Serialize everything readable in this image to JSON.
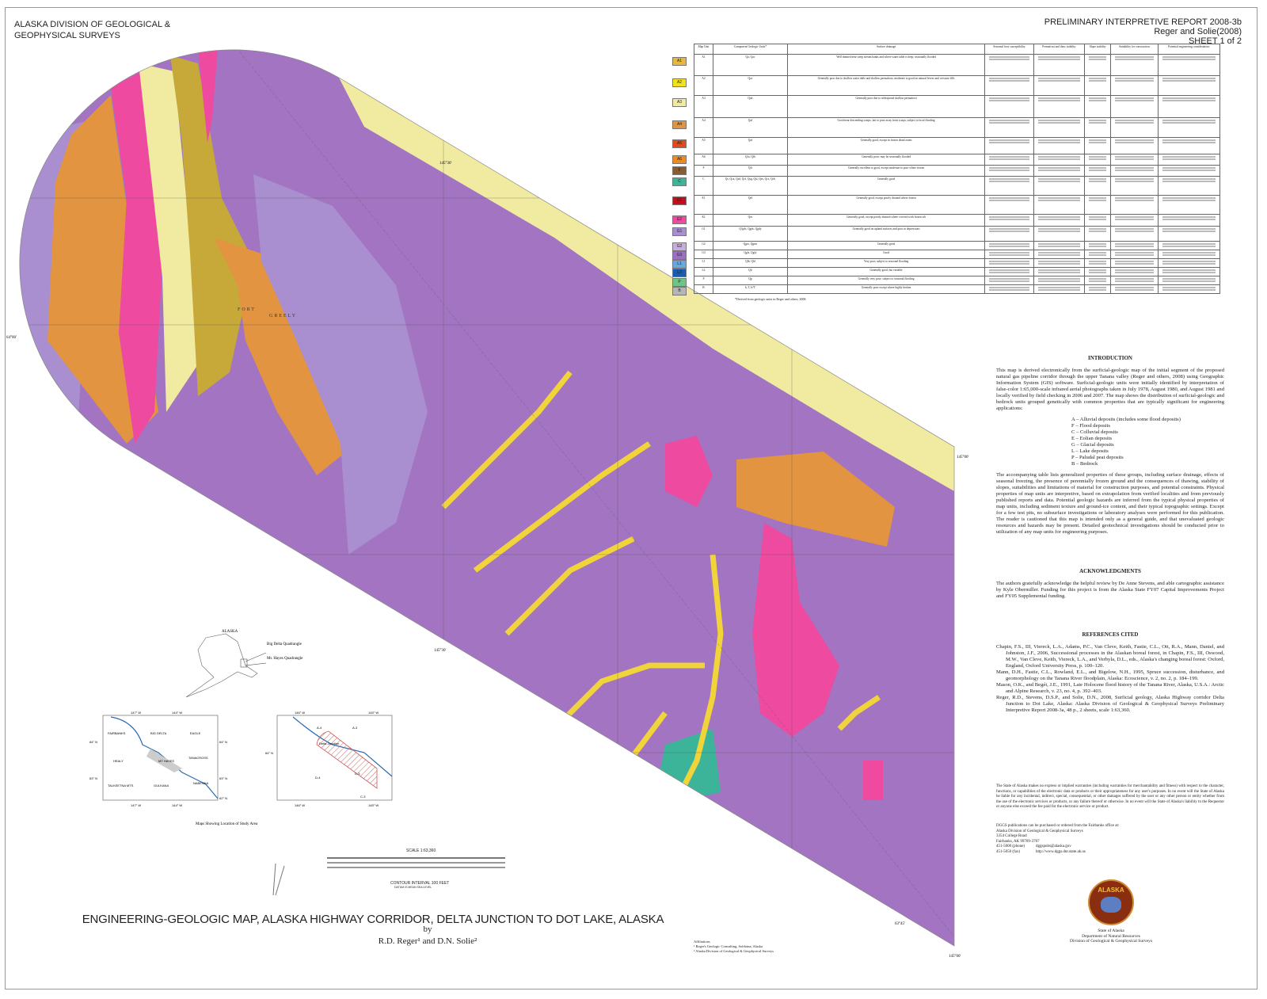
{
  "header": {
    "agency": "ALASKA DIVISION OF GEOLOGICAL & GEOPHYSICAL SURVEYS",
    "report": "PRELIMINARY INTERPRETIVE REPORT 2008-3b",
    "authors_short": "Reger and Solie(2008)",
    "sheet": "SHEET 1 of 2"
  },
  "table": {
    "headers": [
      "Map Unit",
      "Component Geologic Units*",
      "Surface drainage",
      "Seasonal frost susceptibility",
      "Permafrost and thaw stability",
      "Slope stability",
      "Suitability for construction",
      "Potential engineering considerations"
    ],
    "rows": [
      {
        "unit": "A1",
        "color": "#e6b840",
        "components": "Qa, Qac",
        "drainage": "Well drained near steep stream banks and where water table is deep; seasonally flooded"
      },
      {
        "unit": "A2",
        "color": "#f2e21c",
        "components": "Qac",
        "drainage": "Generally poor due to shallow water table and shallow permafrost; moderate to good on natural levees and crevasse fills"
      },
      {
        "unit": "A3",
        "color": "#f0eba0",
        "components": "Qab",
        "drainage": "Generally poor due to widespread shallow permafrost"
      },
      {
        "unit": "A4",
        "color": "#e39440",
        "components": "Qaf",
        "drainage": "Good near descending scarps; fair to poor away from scarps; subject to local flooding"
      },
      {
        "unit": "A5",
        "color": "#e04a1c",
        "components": "Qaf",
        "drainage": "Generally good, except in frozen distal zones"
      },
      {
        "unit": "A6",
        "color": "#ef8a1e",
        "components": "Qfo, Qfh",
        "drainage": "Generally poor; may be seasonally flooded"
      },
      {
        "unit": "F",
        "color": "#8a5a30",
        "components": "Qfr",
        "drainage": "Generally excellent to good, except moderate to poor where frozen"
      },
      {
        "unit": "C",
        "color": "#3bb49a",
        "components": "Qs, Qca, Qsd, Qcf, Qsg, Qsl, Qes, Qcs, Qcb",
        "drainage": "Generally good"
      },
      {
        "unit": "E1",
        "color": "#c0101a",
        "components": "Qel",
        "drainage": "Generally good, except poorly drained where frozen"
      },
      {
        "unit": "E2",
        "color": "#ee4aa0",
        "components": "Qes",
        "drainage": "Generally good, except poorly drained where covered with frozen silt"
      },
      {
        "unit": "G1",
        "color": "#a98fcf",
        "components": "Q?gds, Qgds, Qgdy",
        "drainage": "Generally good on upland surfaces and poor in depressions"
      },
      {
        "unit": "G2",
        "color": "#c7aedc",
        "components": "Qgrx, Qgmr",
        "drainage": "Generally good"
      },
      {
        "unit": "G3",
        "color": "#9d6fbf",
        "components": "Qgfs, Qgfy",
        "drainage": "Good"
      },
      {
        "unit": "L1",
        "color": "#6aa7dc",
        "components": "Qlb, Qld",
        "drainage": "Very poor; subject to seasonal flooding"
      },
      {
        "unit": "L2",
        "color": "#1a5cb0",
        "components": "Qlr",
        "drainage": "Generally good, but variable"
      },
      {
        "unit": "P",
        "color": "#6fc487",
        "components": "Qp",
        "drainage": "Generally very poor; subject to seasonal flooding"
      },
      {
        "unit": "B",
        "color": "#b5b5b5",
        "components": "b, T, b?T",
        "drainage": "Generally poor except where highly broken"
      }
    ],
    "footnote": "*Derived from geologic units in Reger and others, 2008."
  },
  "intro": {
    "heading": "INTRODUCTION",
    "p1": "This map is derived electronically from the surficial-geologic map of the initial segment of the proposed natural gas pipeline corridor through the upper Tanana valley (Reger and others, 2008) using Geographic Information System (GIS) software. Surficial-geologic units were initially identified by interpretation of false-color 1:65,000-scale infrared aerial photographs taken in July 1978, August 1980, and August 1981 and locally verified by field checking in 2006 and 2007. The map shows the distribution of surficial-geologic and bedrock units grouped genetically with common properties that are typically significant for engineering applications:",
    "groups": [
      "A – Alluvial deposits (includes some flood deposits)",
      "F – Flood deposits",
      "C – Colluvial deposits",
      "E – Eolian deposits",
      "G – Glacial deposits",
      "L – Lake deposits",
      "P – Paludal peat deposits",
      "B – Bedrock"
    ],
    "p2": "The accompanying table lists generalized properties of these groups, including surface drainage, effects of seasonal freezing, the presence of perennially frozen ground and the consequences of thawing, stability of slopes, suitabilities and limitations of material for construction purposes, and potential constraints. Physical properties of map units are interpretive, based on extrapolation from verified localities and from previously published reports and data. Potential geologic hazards are inferred from the typical physical properties of map units, including sediment texture and ground-ice content, and their typical topographic settings. Except for a few test pits, no subsurface investigations or laboratory analyses were performed for this publication. The reader is cautioned that this map is intended only as a general guide, and that unevaluated geologic resources and hazards may be present. Detailed geotechnical investigations should be conducted prior to utilization of any map units for engineering purposes."
  },
  "ack": {
    "heading": "ACKNOWLEDGMENTS",
    "text": "The authors gratefully acknowledge the helpful review by De Anne Stevens, and able cartographic assistance by Kyle Obermiller. Funding for this project is from the Alaska State FY07 Capital Improvements Project and FY05 Supplemental funding."
  },
  "refs": {
    "heading": "REFERENCES CITED",
    "items": [
      "Chapin, F.S., III, Viereck, L.A., Adams, P.C., Van Cleve, Keith, Fastie, C.L., Ott, R.A., Mann, Daniel, and Johnston, J.F., 2006, Successional processes in the Alaskan boreal forest, in Chapin, F.S., III, Oswood, M.W., Van Cleve, Keith, Viereck, L.A., and Verbyla, D.L., eds., Alaska's changing boreal forest: Oxford, England, Oxford University Press, p. 100–120.",
      "Mann, D.H., Fastie, C.L., Rowland, E.L., and Bigelow, N.H., 1995, Spruce succession, disturbance, and geomorphology on the Tanana River floodplain, Alaska: Ecoscience, v. 2, no. 2, p. 184–199.",
      "Mason, O.K., and Begét, J.E., 1991, Late Holocene flood history of the Tanana River, Alaska, U.S.A.: Arctic and Alpine Research, v. 23, no. 4, p. 392–403.",
      "Reger, R.D., Stevens, D.S.P., and Solie, D.N., 2008, Surficial geology, Alaska Highway corridor Delta Junction to Dot Lake, Alaska: Alaska Division of Geological & Geophysical Surveys Preliminary Interpretive Report 2008-3a, 48 p., 2 sheets, scale 1:63,360."
    ]
  },
  "disclaimer": "The State of Alaska makes no express or implied warranties (including warranties for merchantability and fitness) with respect to the character, functions, or capabilities of the electronic data or products or their appropriateness for any user's purposes. In no event will the State of Alaska be liable for any incidental, indirect, special, consequential, or other damages suffered by the user or any other person or entity whether from the use of the electronic services or products, or any failure thereof or otherwise. In no event will the State of Alaska's liability to the Requestor or anyone else exceed the fee paid for the electronic service or product.",
  "order": {
    "lines": [
      "DGGS publications can be purchased or ordered from the Fairbanks office at:",
      "Alaska Division of Geological & Geophysical Surveys",
      "3354 College Road",
      "Fairbanks, AK 99709-3707"
    ],
    "phone": "451-5000 (phone)",
    "fax": "451-5050 (fax)",
    "email": "dggspubs@alaska.gov",
    "web": "http://www.dggs.dnr.state.ak.us"
  },
  "seal": {
    "text": "ALASKA",
    "lines": [
      "State of Alaska",
      "Department of Natural Resources",
      "Division of Geological & Geophysical Surveys"
    ]
  },
  "map_labels": {
    "lat1": "64°00'",
    "lat2": "63°45'",
    "lon1": "145°30'",
    "lon2": "145°30'",
    "lon3": "145°00'",
    "lon4": "145°00'",
    "town1": "FORT",
    "town2": "GREELY"
  },
  "inset": {
    "alaska": "ALASKA",
    "quad1": "Big Delta Quadrangle",
    "quad2": "Mt. Hayes Quadrangle",
    "caption": "Maps Showing Location of Study Area",
    "map1": {
      "top": [
        "147° W",
        "144° W"
      ],
      "bottom": [
        "147° W",
        "144° W"
      ],
      "left": [
        "64° N",
        "63° N"
      ],
      "right": [
        "64° N",
        "63° N",
        "62° N"
      ],
      "quads": [
        "FAIRBANKS",
        "BIG DELTA",
        "EAGLE",
        "HEALY",
        "MT HAYES",
        "TANACROSS",
        "TALKEETNA MTS",
        "GULKANA",
        "NABESNA"
      ]
    },
    "map2": {
      "top": [
        "146° W",
        "145° W"
      ],
      "bottom": [
        "146° W",
        "145° W"
      ],
      "left": [
        "64° N"
      ],
      "places": [
        "Delta Junction",
        "A-4",
        "A-3",
        "D-4",
        "D-3",
        "C-3"
      ]
    }
  },
  "scale": {
    "title": "SCALE 1:63,360",
    "contour": "CONTOUR INTERVAL 100 FEET",
    "datum": "DATUM IS MEAN SEA LEVEL"
  },
  "title": {
    "main": "ENGINEERING-GEOLOGIC MAP, ALASKA HIGHWAY CORRIDOR, DELTA JUNCTION TO DOT LAKE, ALASKA",
    "by": "by",
    "authors": "R.D. Reger¹ and D.N. Solie²"
  },
  "affiliations": {
    "heading": "Affiliations",
    "items": [
      "¹ Reger's Geologic Consulting, Soldotna, Alaska",
      "² Alaska Division of Geological & Geophysical Surveys"
    ]
  }
}
